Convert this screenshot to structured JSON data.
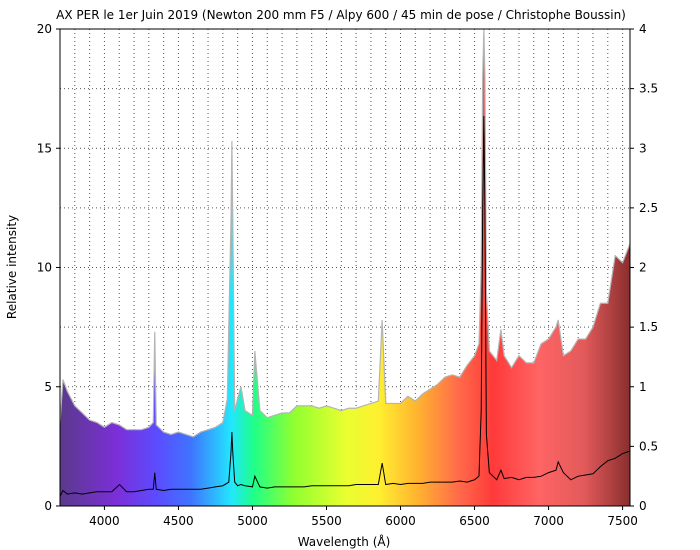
{
  "chart_data": {
    "type": "line",
    "title": "AX PER le 1er Juin 2019 (Newton 200 mm F5 / Alpy 600 / 45 min de pose / Christophe Boussin)",
    "xlabel": "Wavelength (Å)",
    "ylabel": "Relative intensity",
    "xlim": [
      3700,
      7550
    ],
    "ylim": [
      0,
      20
    ],
    "y2lim": [
      0,
      4
    ],
    "xticks": [
      "4000",
      "4500",
      "5000",
      "5500",
      "6000",
      "6500",
      "7000",
      "7500"
    ],
    "yticks": [
      "0",
      "5",
      "10",
      "15",
      "20"
    ],
    "y2ticks": [
      "0",
      "0.5",
      "1",
      "1.5",
      "2",
      "2.5",
      "3",
      "3.5",
      "4"
    ],
    "grid": true,
    "gridstyle": "dotted",
    "background": "rainbow spectrum fill",
    "series": [
      {
        "axis": "left",
        "style": "filled rainbow area with grey outline",
        "x": [
          3700,
          3720,
          3750,
          3800,
          3850,
          3900,
          3950,
          4000,
          4050,
          4100,
          4150,
          4200,
          4250,
          4300,
          4330,
          4340,
          4350,
          4400,
          4450,
          4500,
          4550,
          4600,
          4650,
          4700,
          4750,
          4800,
          4830,
          4855,
          4861,
          4867,
          4880,
          4900,
          4922,
          4950,
          5000,
          5016,
          5050,
          5100,
          5150,
          5200,
          5250,
          5300,
          5350,
          5400,
          5450,
          5500,
          5550,
          5600,
          5650,
          5700,
          5750,
          5800,
          5850,
          5876,
          5900,
          5950,
          6000,
          6050,
          6100,
          6150,
          6200,
          6250,
          6300,
          6350,
          6400,
          6450,
          6500,
          6530,
          6545,
          6555,
          6563,
          6570,
          6580,
          6600,
          6650,
          6678,
          6700,
          6750,
          6800,
          6850,
          6900,
          6950,
          7000,
          7050,
          7065,
          7100,
          7150,
          7200,
          7250,
          7300,
          7350,
          7400,
          7450,
          7500,
          7550
        ],
        "y": [
          3.5,
          5.3,
          4.8,
          4.2,
          3.9,
          3.6,
          3.5,
          3.3,
          3.5,
          3.4,
          3.2,
          3.2,
          3.2,
          3.3,
          3.5,
          7.3,
          3.4,
          3.1,
          3.0,
          3.1,
          3.0,
          2.9,
          3.1,
          3.2,
          3.3,
          3.5,
          4.5,
          12.0,
          15.3,
          12.0,
          4.0,
          4.5,
          5.0,
          4.0,
          3.8,
          6.5,
          4.0,
          3.7,
          3.8,
          3.9,
          3.9,
          4.2,
          4.2,
          4.2,
          4.1,
          4.2,
          4.1,
          4.0,
          4.1,
          4.1,
          4.2,
          4.3,
          4.4,
          7.8,
          4.3,
          4.3,
          4.3,
          4.6,
          4.4,
          4.7,
          4.9,
          5.1,
          5.4,
          5.5,
          5.4,
          5.9,
          6.3,
          6.8,
          10.0,
          18.0,
          20.0,
          18.0,
          9.0,
          6.5,
          6.1,
          7.4,
          6.3,
          5.8,
          6.3,
          6.0,
          6.0,
          6.8,
          7.0,
          7.5,
          7.8,
          6.3,
          6.5,
          7.0,
          7.0,
          7.5,
          8.5,
          8.5,
          10.5,
          10.2,
          11.0
        ]
      },
      {
        "axis": "right",
        "style": "black line",
        "x": [
          3700,
          3720,
          3750,
          3800,
          3850,
          3900,
          3950,
          4000,
          4050,
          4102,
          4150,
          4200,
          4250,
          4300,
          4330,
          4340,
          4350,
          4400,
          4450,
          4500,
          4550,
          4600,
          4650,
          4700,
          4750,
          4800,
          4840,
          4855,
          4861,
          4867,
          4880,
          4900,
          4922,
          4950,
          5000,
          5016,
          5050,
          5100,
          5150,
          5200,
          5250,
          5300,
          5350,
          5400,
          5450,
          5500,
          5550,
          5600,
          5650,
          5700,
          5750,
          5800,
          5850,
          5876,
          5900,
          5950,
          6000,
          6050,
          6100,
          6150,
          6200,
          6250,
          6300,
          6350,
          6400,
          6450,
          6500,
          6530,
          6545,
          6555,
          6563,
          6570,
          6580,
          6600,
          6650,
          6678,
          6700,
          6750,
          6800,
          6850,
          6900,
          6950,
          7000,
          7050,
          7065,
          7100,
          7150,
          7200,
          7250,
          7300,
          7350,
          7400,
          7450,
          7500,
          7550
        ],
        "y": [
          0.08,
          0.13,
          0.1,
          0.11,
          0.1,
          0.11,
          0.12,
          0.12,
          0.12,
          0.18,
          0.12,
          0.12,
          0.13,
          0.14,
          0.14,
          0.28,
          0.14,
          0.13,
          0.14,
          0.14,
          0.14,
          0.14,
          0.14,
          0.15,
          0.16,
          0.17,
          0.2,
          0.45,
          0.62,
          0.45,
          0.2,
          0.17,
          0.18,
          0.17,
          0.16,
          0.25,
          0.16,
          0.15,
          0.16,
          0.16,
          0.16,
          0.16,
          0.16,
          0.17,
          0.17,
          0.17,
          0.17,
          0.17,
          0.17,
          0.18,
          0.18,
          0.18,
          0.18,
          0.36,
          0.18,
          0.19,
          0.18,
          0.19,
          0.19,
          0.19,
          0.2,
          0.2,
          0.2,
          0.2,
          0.21,
          0.2,
          0.22,
          0.25,
          0.8,
          2.5,
          3.27,
          2.5,
          0.6,
          0.28,
          0.22,
          0.3,
          0.23,
          0.24,
          0.22,
          0.24,
          0.24,
          0.25,
          0.28,
          0.3,
          0.37,
          0.28,
          0.22,
          0.25,
          0.26,
          0.27,
          0.33,
          0.38,
          0.4,
          0.44,
          0.46
        ]
      }
    ]
  }
}
